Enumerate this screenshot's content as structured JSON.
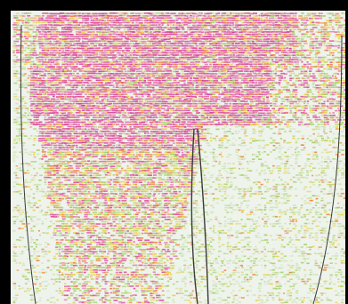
{
  "figure": {
    "background_color": "#000000",
    "panel_color": "#eef3ec",
    "outline_color": "#3a3a3a",
    "palette": {
      "pink": "#e0569f",
      "magenta": "#d0449a",
      "orange": "#f08a4a",
      "yellow": "#e8d24a",
      "green": "#a8cf6a",
      "pale_green": "#cfe2b4"
    },
    "density": {
      "description_levels": [
        "high",
        "medium",
        "low"
      ]
    }
  }
}
